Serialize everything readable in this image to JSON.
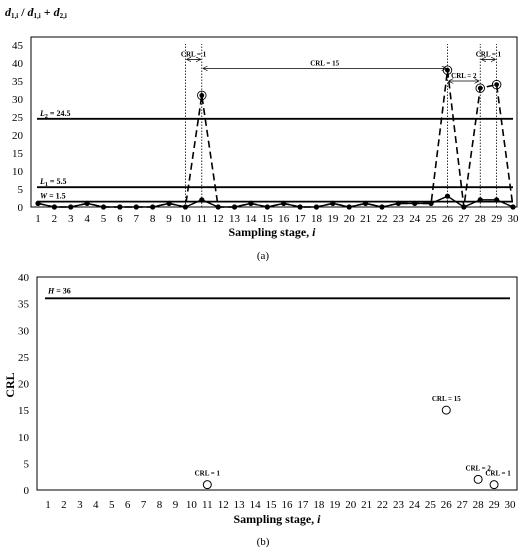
{
  "chart_data": [
    {
      "type": "line",
      "ylabel": "d1,i / d1,i + d2,i",
      "xlabel": "Sampling stage, i",
      "caption": "(a)",
      "xlim": [
        1,
        30
      ],
      "ylim": [
        0,
        45
      ],
      "yticks": [
        0,
        5,
        10,
        15,
        20,
        25,
        30,
        35,
        40,
        45
      ],
      "x": [
        1,
        2,
        3,
        4,
        5,
        6,
        7,
        8,
        9,
        10,
        11,
        12,
        13,
        14,
        15,
        16,
        17,
        18,
        19,
        20,
        21,
        22,
        23,
        24,
        25,
        26,
        27,
        28,
        29,
        30
      ],
      "series": [
        {
          "name": "d1,i",
          "style": "solid-dots",
          "values": [
            1,
            0,
            0,
            1,
            0,
            0,
            0,
            0,
            1,
            0,
            2,
            0,
            0,
            1,
            0,
            1,
            0,
            0,
            1,
            0,
            1,
            0,
            1,
            1,
            1,
            3,
            0,
            2,
            2,
            0
          ]
        },
        {
          "name": "d1,i + d2,i",
          "style": "dashed-dots",
          "values": [
            1,
            0,
            0,
            1,
            0,
            0,
            0,
            0,
            1,
            0,
            31,
            0,
            0,
            1,
            0,
            1,
            0,
            0,
            1,
            0,
            1,
            0,
            1,
            1,
            1,
            38,
            0,
            33,
            34,
            0
          ]
        }
      ],
      "hlines": [
        {
          "label": "L2 = 24.5",
          "value": 24.5
        },
        {
          "label": "L1 = 5.5",
          "value": 5.5
        },
        {
          "label": "W = 1.5",
          "value": 1.5
        }
      ],
      "annotations": [
        {
          "text": "CRL = 1",
          "from": 10,
          "to": 11,
          "y": 41
        },
        {
          "text": "CRL = 15",
          "from": 11,
          "to": 26,
          "y": 38.5
        },
        {
          "text": "CRL = 2",
          "from": 26,
          "to": 28,
          "y": 35
        },
        {
          "text": "CRL = 1",
          "from": 28,
          "to": 29,
          "y": 41
        }
      ],
      "circled_points": [
        11,
        26,
        28,
        29
      ],
      "dotted_markers": [
        10,
        11,
        26,
        28,
        29
      ]
    },
    {
      "type": "scatter",
      "ylabel": "CRL",
      "xlabel": "Sampling stage, i",
      "caption": "(b)",
      "xlim": [
        1,
        30
      ],
      "ylim": [
        0,
        40
      ],
      "yticks": [
        0,
        5,
        10,
        15,
        20,
        25,
        30,
        35,
        40
      ],
      "hlines": [
        {
          "label": "H = 36",
          "value": 36
        }
      ],
      "points": [
        {
          "x": 11,
          "y": 1,
          "label": "CRL = 1"
        },
        {
          "x": 26,
          "y": 15,
          "label": "CRL = 15"
        },
        {
          "x": 28,
          "y": 2,
          "label": "CRL = 2"
        },
        {
          "x": 29,
          "y": 1,
          "label": "CRL = 1"
        }
      ]
    }
  ]
}
